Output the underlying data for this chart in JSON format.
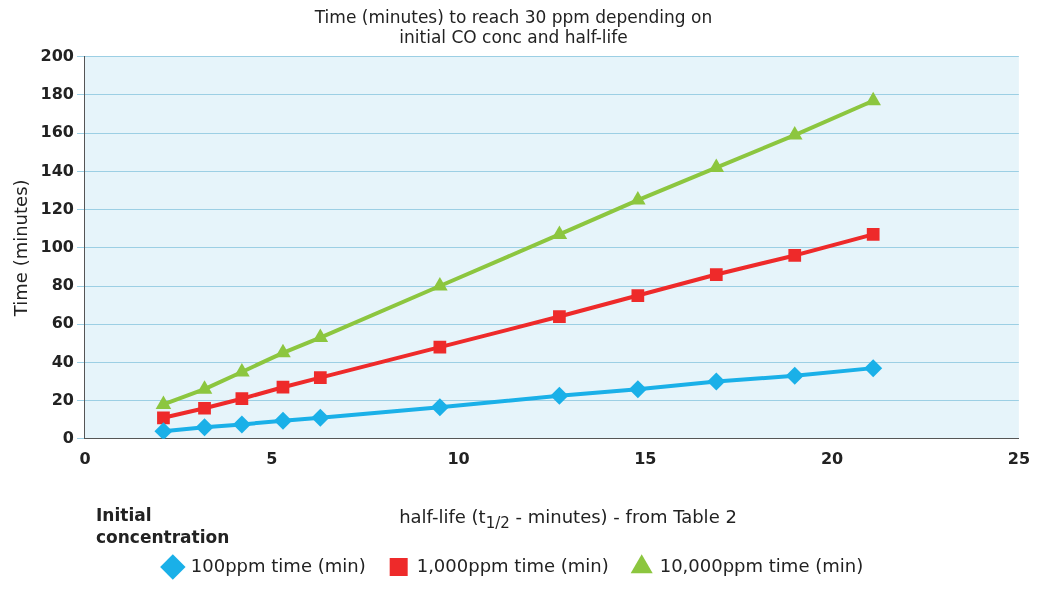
{
  "chart_data": {
    "type": "line",
    "title": "Time (minutes) to reach 30 ppm depending on\ninitial CO conc and half-life",
    "xlabel": "half-life (t$_{1/2}$ - minutes) - from Table 2",
    "ylabel": "Time (minutes)",
    "annotations": [
      "Initial\nconcentration"
    ],
    "x": [
      2.1,
      3.2,
      4.2,
      5.3,
      6.3,
      9.5,
      12.7,
      14.8,
      16.9,
      19.0,
      21.1
    ],
    "series": [
      {
        "name": "100ppm time (min)",
        "color": "#1ab0e8",
        "marker": "diamond",
        "values": [
          4,
          6,
          7.5,
          9.5,
          11,
          16.5,
          22.5,
          26,
          30,
          33,
          37
        ]
      },
      {
        "name": "1,000ppm time (min)",
        "color": "#ee2a2a",
        "marker": "square",
        "values": [
          11,
          16,
          21,
          27,
          32,
          48,
          64,
          75,
          86,
          96,
          107
        ]
      },
      {
        "name": "10,000ppm time (min)",
        "color": "#8cc63f",
        "marker": "triangle",
        "values": [
          18,
          26,
          35,
          45,
          53,
          80,
          107,
          125,
          142,
          159,
          177
        ]
      }
    ],
    "xlim": [
      0,
      25
    ],
    "xticks": [
      0,
      5,
      10,
      15,
      20,
      25
    ],
    "ylim": [
      0,
      200
    ],
    "yticks": [
      0,
      20,
      40,
      60,
      80,
      100,
      120,
      140,
      160,
      180,
      200
    ],
    "grid": "y",
    "legend": "bottom",
    "line_style": "solid"
  }
}
